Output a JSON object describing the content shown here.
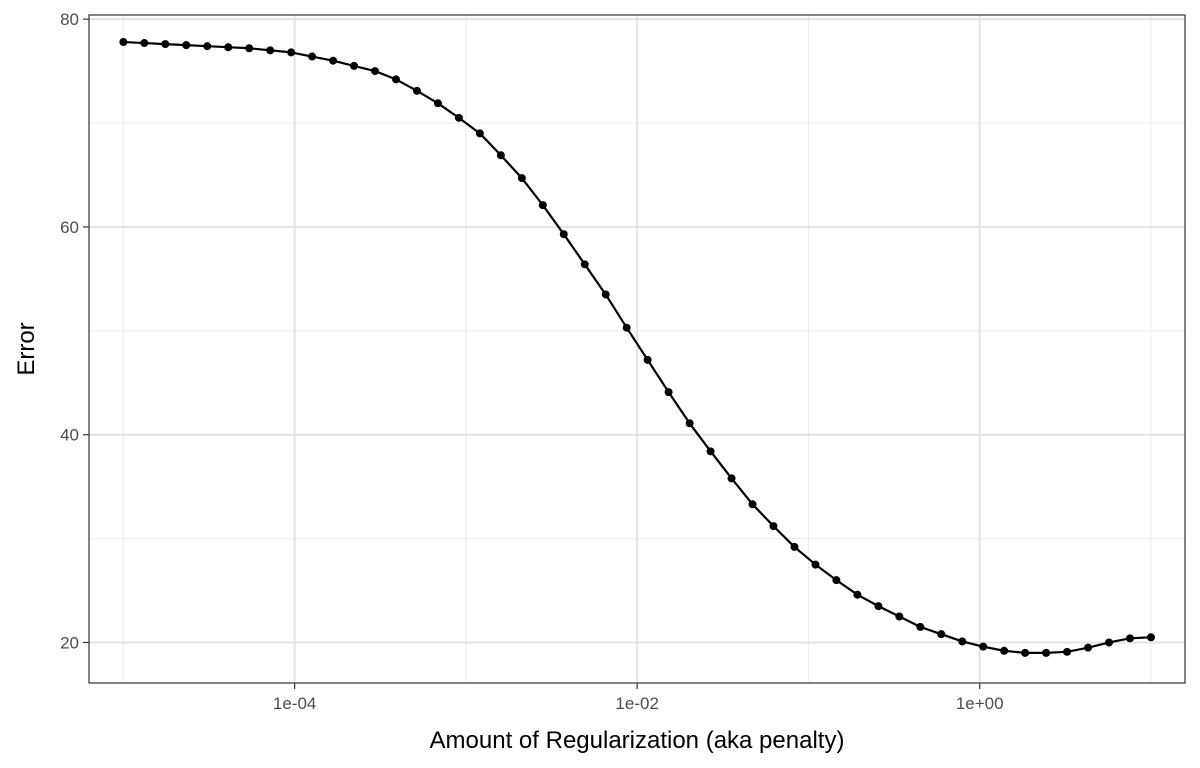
{
  "chart_data": {
    "type": "line",
    "title": "",
    "xlabel": "Amount of Regularization (aka penalty)",
    "ylabel": "Error",
    "x_scale": "log10",
    "xlim": [
      6.3e-06,
      15.8
    ],
    "ylim": [
      16.1,
      80.4
    ],
    "x_ticks": [
      {
        "value": 0.0001,
        "label": "1e-04"
      },
      {
        "value": 0.01,
        "label": "1e-02"
      },
      {
        "value": 1,
        "label": "1e+00"
      }
    ],
    "y_ticks": [
      {
        "value": 20,
        "label": "20"
      },
      {
        "value": 40,
        "label": "40"
      },
      {
        "value": 60,
        "label": "60"
      },
      {
        "value": 80,
        "label": "80"
      }
    ],
    "grid": true,
    "series": [
      {
        "color": "#000000",
        "markers": true,
        "x": [
          1e-05,
          1.326e-05,
          1.758e-05,
          2.33e-05,
          3.089e-05,
          4.095e-05,
          5.429e-05,
          7.197e-05,
          9.541e-05,
          0.0001265,
          0.0001677,
          0.0002223,
          0.0002947,
          0.0003907,
          0.000518,
          0.0006866,
          0.0009103,
          0.001207,
          0.0016,
          0.002121,
          0.002812,
          0.003728,
          0.004942,
          0.006551,
          0.008685,
          0.01151,
          0.01526,
          0.02024,
          0.02683,
          0.03556,
          0.04715,
          0.06251,
          0.08286,
          0.1099,
          0.1456,
          0.1931,
          0.256,
          0.3393,
          0.4498,
          0.5964,
          0.7906,
          1.048,
          1.389,
          1.842,
          2.442,
          3.237,
          4.292,
          5.689,
          7.543,
          10
        ],
        "y": [
          77.8,
          77.7,
          77.6,
          77.5,
          77.4,
          77.3,
          77.2,
          77.0,
          76.8,
          76.4,
          76.0,
          75.5,
          75.0,
          74.2,
          73.1,
          71.9,
          70.5,
          69.0,
          66.9,
          64.7,
          62.1,
          59.3,
          56.4,
          53.5,
          50.3,
          47.2,
          44.1,
          41.1,
          38.4,
          35.8,
          33.3,
          31.2,
          29.2,
          27.5,
          26.0,
          24.6,
          23.5,
          22.5,
          21.5,
          20.8,
          20.1,
          19.6,
          19.2,
          19.0,
          19.0,
          19.1,
          19.5,
          20.0,
          20.4,
          20.5
        ]
      }
    ]
  }
}
